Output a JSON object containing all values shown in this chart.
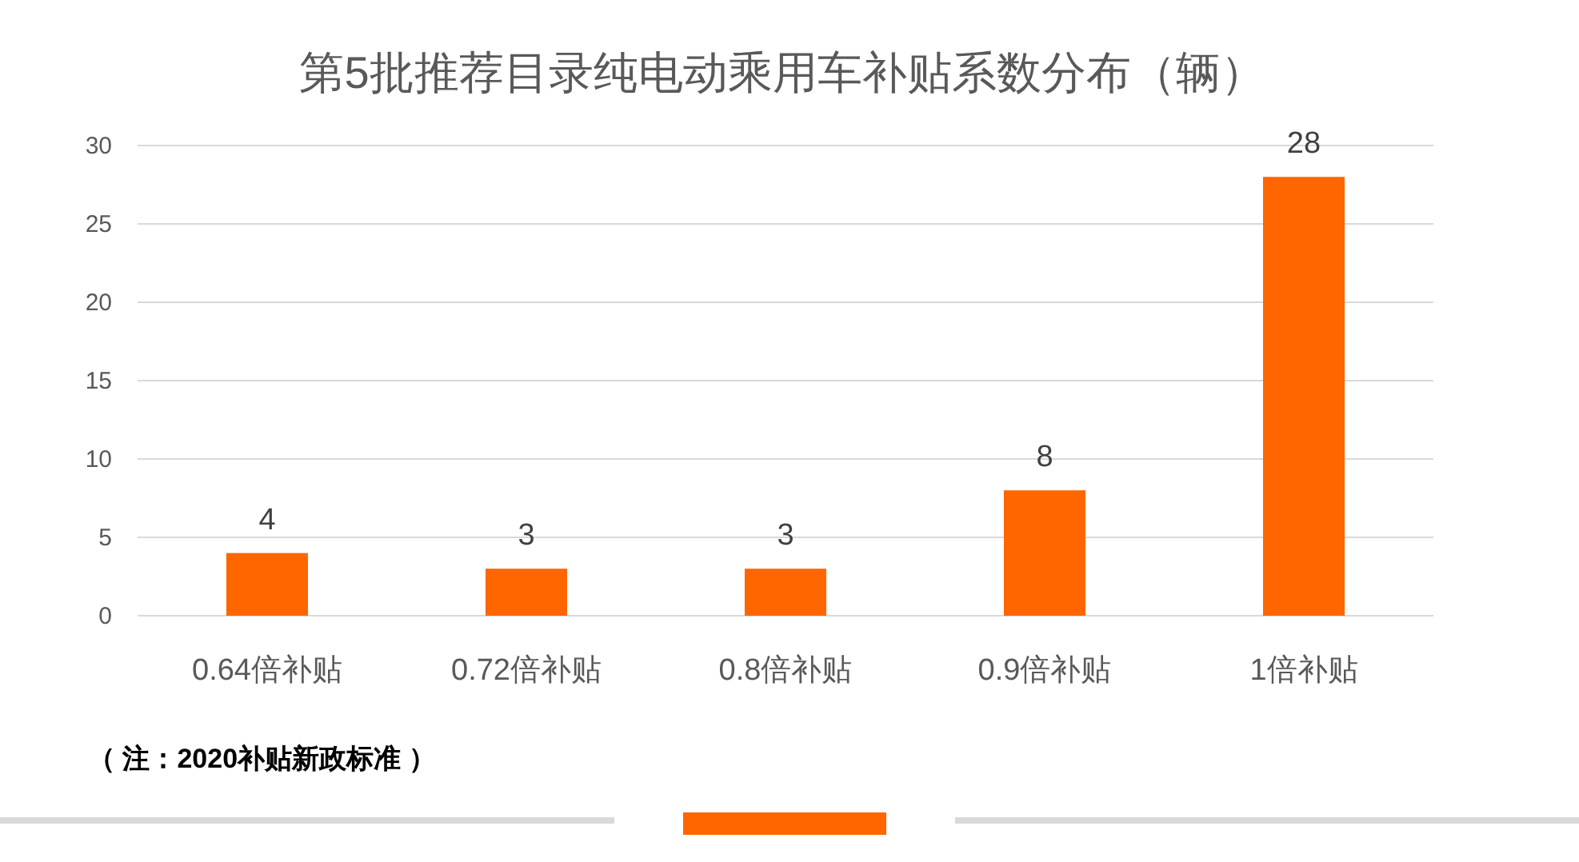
{
  "chart_data": {
    "type": "bar",
    "title": "第5批推荐目录纯电动乘用车补贴系数分布（辆）",
    "categories": [
      "0.64倍补贴",
      "0.72倍补贴",
      "0.8倍补贴",
      "0.9倍补贴",
      "1倍补贴"
    ],
    "values": [
      4,
      3,
      3,
      8,
      28
    ],
    "color": "#ff6600",
    "ylim": [
      0,
      30
    ],
    "yticks": [
      0,
      5,
      10,
      15,
      20,
      25,
      30
    ],
    "grid": "y",
    "data_labels": true,
    "annotations": [
      "（ 注：2020补贴新政标准 ）"
    ]
  }
}
